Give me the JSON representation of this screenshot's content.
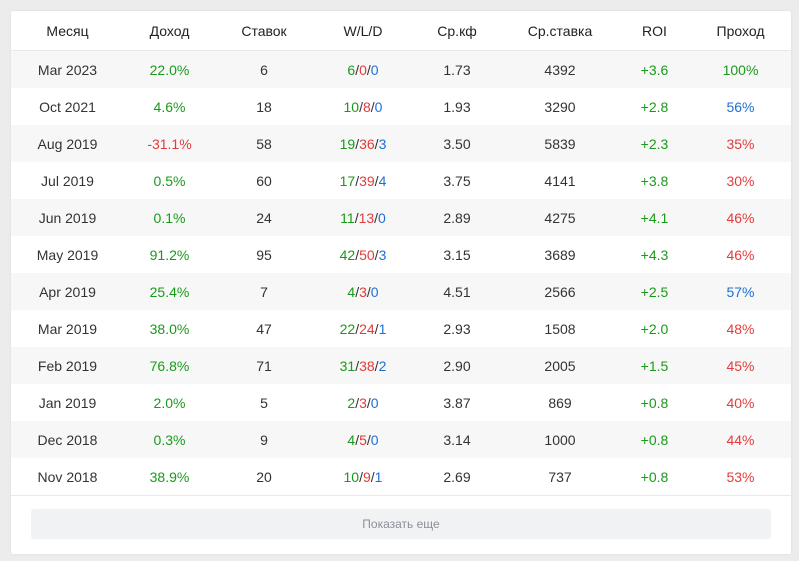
{
  "colors": {
    "positive": "#1a9a1a",
    "negative": "#e23b3b",
    "neutral": "#1f6fd6"
  },
  "headers": [
    "Месяц",
    "Доход",
    "Ставок",
    "W/L/D",
    "Ср.кф",
    "Ср.ставка",
    "ROI",
    "Проход"
  ],
  "rows": [
    {
      "month": "Mar 2023",
      "income": "22.0%",
      "income_sign": "pos",
      "bets": "6",
      "w": "6",
      "l": "0",
      "d": "0",
      "avg_odds": "1.73",
      "avg_stake": "4392",
      "roi": "+3.6",
      "pass": "100%",
      "pass_color": "pos"
    },
    {
      "month": "Oct 2021",
      "income": "4.6%",
      "income_sign": "pos",
      "bets": "18",
      "w": "10",
      "l": "8",
      "d": "0",
      "avg_odds": "1.93",
      "avg_stake": "3290",
      "roi": "+2.8",
      "pass": "56%",
      "pass_color": "neu"
    },
    {
      "month": "Aug 2019",
      "income": "-31.1%",
      "income_sign": "neg",
      "bets": "58",
      "w": "19",
      "l": "36",
      "d": "3",
      "avg_odds": "3.50",
      "avg_stake": "5839",
      "roi": "+2.3",
      "pass": "35%",
      "pass_color": "neg"
    },
    {
      "month": "Jul 2019",
      "income": "0.5%",
      "income_sign": "pos",
      "bets": "60",
      "w": "17",
      "l": "39",
      "d": "4",
      "avg_odds": "3.75",
      "avg_stake": "4141",
      "roi": "+3.8",
      "pass": "30%",
      "pass_color": "neg"
    },
    {
      "month": "Jun 2019",
      "income": "0.1%",
      "income_sign": "pos",
      "bets": "24",
      "w": "11",
      "l": "13",
      "d": "0",
      "avg_odds": "2.89",
      "avg_stake": "4275",
      "roi": "+4.1",
      "pass": "46%",
      "pass_color": "neg"
    },
    {
      "month": "May 2019",
      "income": "91.2%",
      "income_sign": "pos",
      "bets": "95",
      "w": "42",
      "l": "50",
      "d": "3",
      "avg_odds": "3.15",
      "avg_stake": "3689",
      "roi": "+4.3",
      "pass": "46%",
      "pass_color": "neg"
    },
    {
      "month": "Apr 2019",
      "income": "25.4%",
      "income_sign": "pos",
      "bets": "7",
      "w": "4",
      "l": "3",
      "d": "0",
      "avg_odds": "4.51",
      "avg_stake": "2566",
      "roi": "+2.5",
      "pass": "57%",
      "pass_color": "neu"
    },
    {
      "month": "Mar 2019",
      "income": "38.0%",
      "income_sign": "pos",
      "bets": "47",
      "w": "22",
      "l": "24",
      "d": "1",
      "avg_odds": "2.93",
      "avg_stake": "1508",
      "roi": "+2.0",
      "pass": "48%",
      "pass_color": "neg"
    },
    {
      "month": "Feb 2019",
      "income": "76.8%",
      "income_sign": "pos",
      "bets": "71",
      "w": "31",
      "l": "38",
      "d": "2",
      "avg_odds": "2.90",
      "avg_stake": "2005",
      "roi": "+1.5",
      "pass": "45%",
      "pass_color": "neg"
    },
    {
      "month": "Jan 2019",
      "income": "2.0%",
      "income_sign": "pos",
      "bets": "5",
      "w": "2",
      "l": "3",
      "d": "0",
      "avg_odds": "3.87",
      "avg_stake": "869",
      "roi": "+0.8",
      "pass": "40%",
      "pass_color": "neg"
    },
    {
      "month": "Dec 2018",
      "income": "0.3%",
      "income_sign": "pos",
      "bets": "9",
      "w": "4",
      "l": "5",
      "d": "0",
      "avg_odds": "3.14",
      "avg_stake": "1000",
      "roi": "+0.8",
      "pass": "44%",
      "pass_color": "neg"
    },
    {
      "month": "Nov 2018",
      "income": "38.9%",
      "income_sign": "pos",
      "bets": "20",
      "w": "10",
      "l": "9",
      "d": "1",
      "avg_odds": "2.69",
      "avg_stake": "737",
      "roi": "+0.8",
      "pass": "53%",
      "pass_color": "neg"
    }
  ],
  "show_more_label": "Показать еще"
}
